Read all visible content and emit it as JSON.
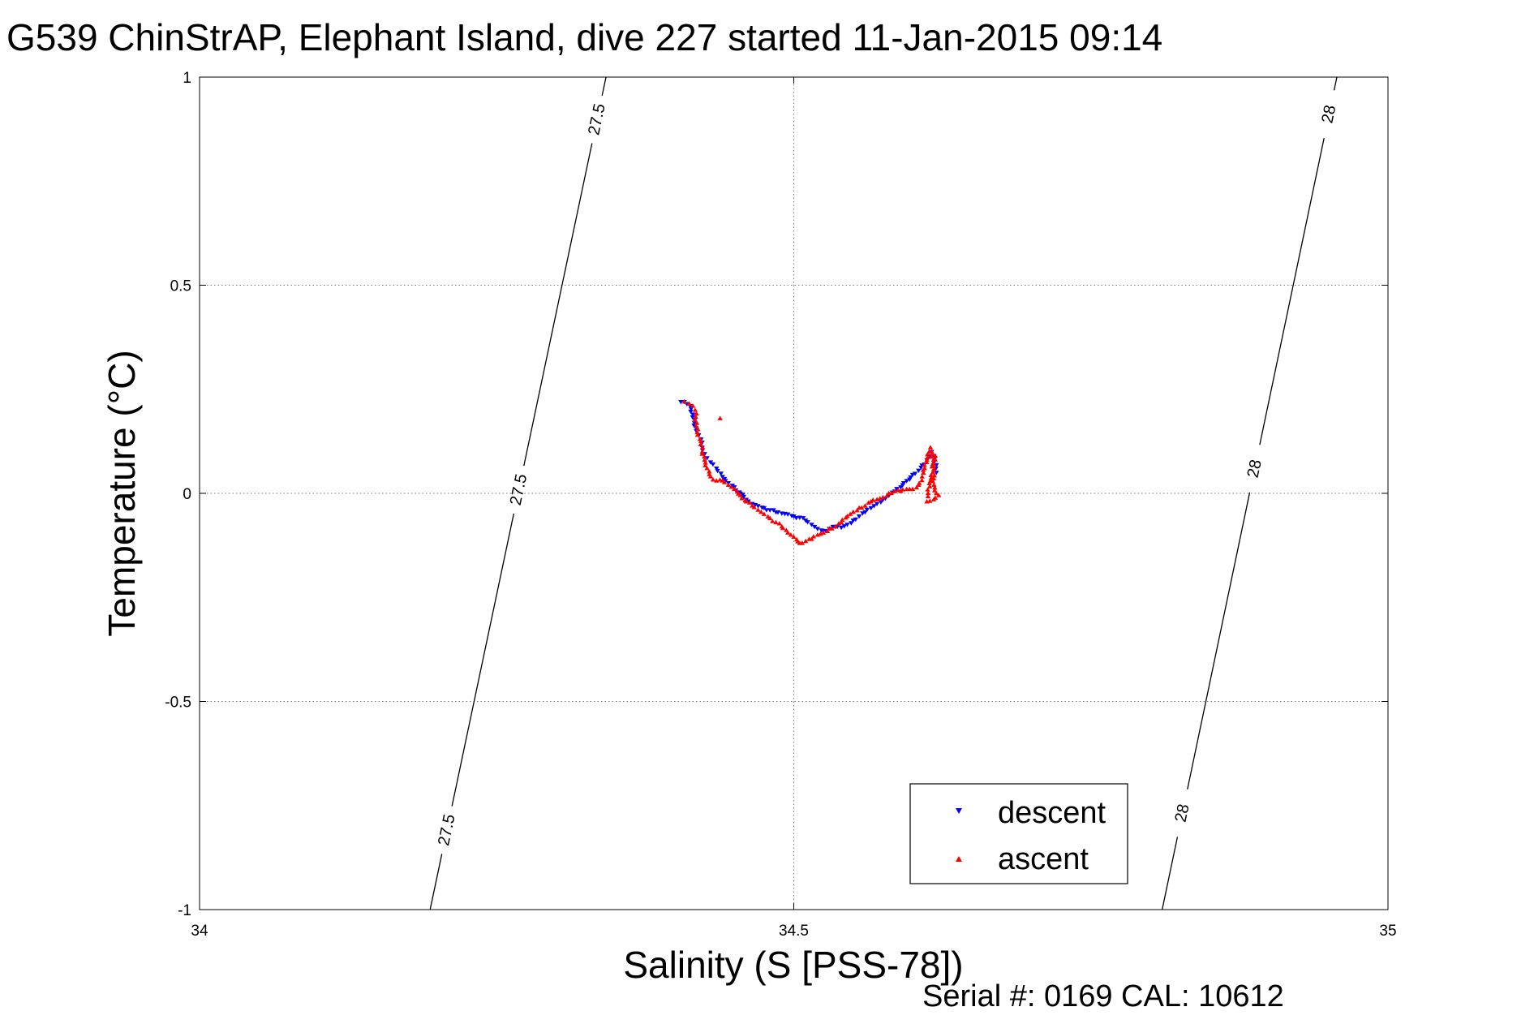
{
  "chart_data": {
    "type": "scatter",
    "title": "G539 ChinStrAP, Elephant Island, dive 227 started 11-Jan-2015 09:14",
    "xlabel": "Salinity (S [PSS-78])",
    "ylabel": "Temperature (°C)",
    "xlim": [
      34,
      35
    ],
    "ylim": [
      -1,
      1
    ],
    "xticks": [
      34,
      34.5,
      35
    ],
    "xtick_labels": [
      "34",
      "34.5",
      "35"
    ],
    "yticks": [
      -1,
      -0.5,
      0,
      0.5,
      1
    ],
    "ytick_labels": [
      "-1",
      "-0.5",
      "0",
      "0.5",
      "1"
    ],
    "grid": true,
    "legend_position": "bottom-right",
    "footnote": "Serial #: 0169 CAL: 10612",
    "isopycnals": [
      {
        "label": "27.5",
        "points": [
          [
            34.194,
            -1.0
          ],
          [
            34.342,
            1.0
          ]
        ],
        "label_positions": [
          [
            34.21,
            -0.81
          ],
          [
            34.25,
            0.02
          ],
          [
            34.315,
            0.91
          ]
        ]
      },
      {
        "label": "28",
        "points": [
          [
            34.81,
            -1.0
          ],
          [
            34.957,
            1.0
          ]
        ],
        "label_positions": [
          [
            34.83,
            -0.77
          ],
          [
            34.87,
            0.07
          ],
          [
            34.935,
            0.92
          ]
        ]
      }
    ],
    "series": [
      {
        "name": "descent",
        "marker": "triangle-down",
        "color": "#0000ff",
        "x": [
          34.405,
          34.41,
          34.413,
          34.418,
          34.42,
          34.422,
          34.423,
          34.425,
          34.427,
          34.43,
          34.432,
          34.435,
          34.44,
          34.445,
          34.45,
          34.455,
          34.46,
          34.465,
          34.47,
          34.475,
          34.48,
          34.485,
          34.49,
          34.495,
          34.5,
          34.505,
          34.51,
          34.515,
          34.52,
          34.525,
          34.53,
          34.535,
          34.54,
          34.545,
          34.55,
          34.555,
          34.56,
          34.565,
          34.57,
          34.575,
          34.58,
          34.585,
          34.59,
          34.595,
          34.6,
          34.605,
          34.61,
          34.612,
          34.614,
          34.616,
          34.618,
          34.62
        ],
        "y": [
          0.22,
          0.215,
          0.21,
          0.15,
          0.14,
          0.13,
          0.11,
          0.095,
          0.085,
          0.075,
          0.07,
          0.06,
          0.04,
          0.025,
          0.015,
          0.0,
          -0.015,
          -0.025,
          -0.03,
          -0.035,
          -0.04,
          -0.045,
          -0.048,
          -0.05,
          -0.055,
          -0.058,
          -0.065,
          -0.075,
          -0.085,
          -0.09,
          -0.085,
          -0.08,
          -0.082,
          -0.075,
          -0.065,
          -0.055,
          -0.045,
          -0.035,
          -0.025,
          -0.015,
          -0.005,
          0.005,
          0.015,
          0.03,
          0.045,
          0.055,
          0.07,
          0.08,
          0.09,
          0.1,
          0.09,
          0.05
        ]
      },
      {
        "name": "ascent",
        "marker": "triangle-up",
        "color": "#ff0000",
        "x": [
          34.408,
          34.412,
          34.415,
          34.417,
          34.419,
          34.421,
          34.423,
          34.425,
          34.427,
          34.43,
          34.435,
          34.44,
          34.445,
          34.45,
          34.455,
          34.46,
          34.465,
          34.47,
          34.475,
          34.48,
          34.485,
          34.49,
          34.495,
          34.5,
          34.505,
          34.51,
          34.515,
          34.52,
          34.525,
          34.53,
          34.535,
          34.54,
          34.545,
          34.55,
          34.555,
          34.56,
          34.565,
          34.57,
          34.575,
          34.58,
          34.585,
          34.59,
          34.595,
          34.6,
          34.605,
          34.608,
          34.61,
          34.612,
          34.614,
          34.615,
          34.616,
          34.617,
          34.618,
          34.62,
          34.622,
          34.612,
          34.613,
          34.615,
          34.617,
          34.619,
          34.438
        ],
        "y": [
          0.22,
          0.215,
          0.21,
          0.2,
          0.14,
          0.13,
          0.1,
          0.08,
          0.06,
          0.04,
          0.03,
          0.03,
          0.02,
          0.01,
          -0.005,
          -0.02,
          -0.03,
          -0.04,
          -0.05,
          -0.06,
          -0.07,
          -0.08,
          -0.095,
          -0.105,
          -0.12,
          -0.115,
          -0.11,
          -0.1,
          -0.095,
          -0.085,
          -0.08,
          -0.07,
          -0.055,
          -0.045,
          -0.035,
          -0.03,
          -0.02,
          -0.015,
          -0.01,
          0.0,
          0.005,
          0.005,
          0.01,
          0.01,
          0.02,
          0.04,
          0.06,
          0.08,
          0.1,
          0.11,
          0.1,
          0.07,
          0.02,
          0.0,
          -0.005,
          -0.02,
          0.0,
          0.03,
          0.05,
          0.09,
          0.18
        ]
      }
    ]
  }
}
